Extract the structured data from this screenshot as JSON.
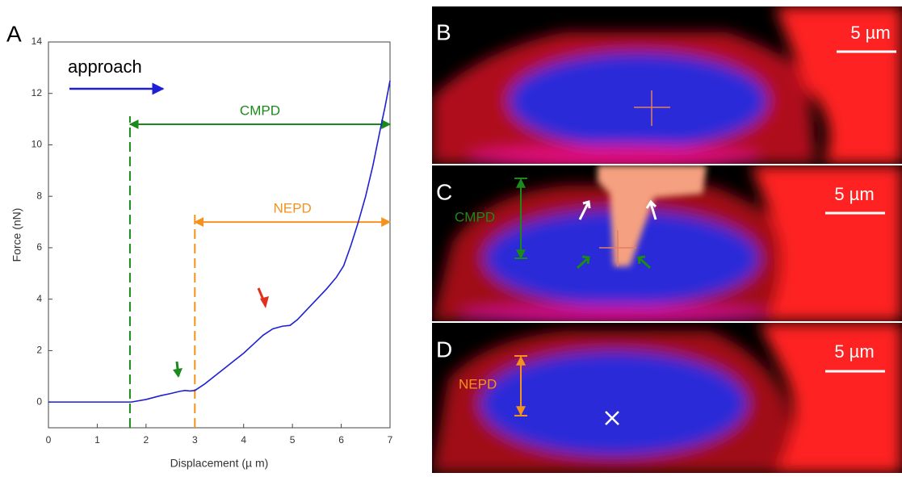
{
  "panel_label": "A",
  "chart_data": {
    "type": "line",
    "x_label": "Displacement (µ m)",
    "y_label": "Force (nN)",
    "x": [
      0,
      0.5,
      1.0,
      1.5,
      1.7,
      2.0,
      2.3,
      2.5,
      2.7,
      2.8,
      2.9,
      3.0,
      3.2,
      3.4,
      3.6,
      3.8,
      4.0,
      4.2,
      4.4,
      4.6,
      4.8,
      4.95,
      5.1,
      5.3,
      5.5,
      5.7,
      5.9,
      6.05,
      6.2,
      6.35,
      6.5,
      6.65,
      6.8,
      6.9,
      7.0
    ],
    "series": [
      {
        "name": "approach",
        "color": "#1f1fd6",
        "values": [
          0,
          0,
          0,
          0,
          0,
          0.1,
          0.25,
          0.33,
          0.42,
          0.45,
          0.43,
          0.45,
          0.7,
          1.0,
          1.3,
          1.6,
          1.9,
          2.25,
          2.6,
          2.85,
          2.95,
          2.98,
          3.2,
          3.6,
          4.0,
          4.4,
          4.85,
          5.3,
          6.1,
          7.0,
          8.0,
          9.2,
          10.6,
          11.5,
          12.5
        ]
      }
    ],
    "annotations": [
      {
        "text": "CMPD",
        "color": "#1a8a1a",
        "x_start": 1.67,
        "x_end": 7,
        "y": 10.8
      },
      {
        "text": "NEPD",
        "color": "#f5921e",
        "x_start": 3,
        "x_end": 7,
        "y": 7
      }
    ],
    "xlim": [
      0,
      7
    ],
    "ylim": [
      -1,
      14
    ],
    "xticks": [
      0,
      1,
      2,
      3,
      4,
      5,
      6,
      7
    ],
    "yticks": [
      0,
      2,
      4,
      6,
      8,
      10,
      12,
      14
    ]
  },
  "images": [
    {
      "label": "B",
      "scale_bar": "5 µm"
    },
    {
      "label": "C",
      "scale_bar": "5 µm",
      "annotation": "CMPD"
    },
    {
      "label": "D",
      "scale_bar": "5 µm",
      "annotation": "NEPD"
    }
  ]
}
